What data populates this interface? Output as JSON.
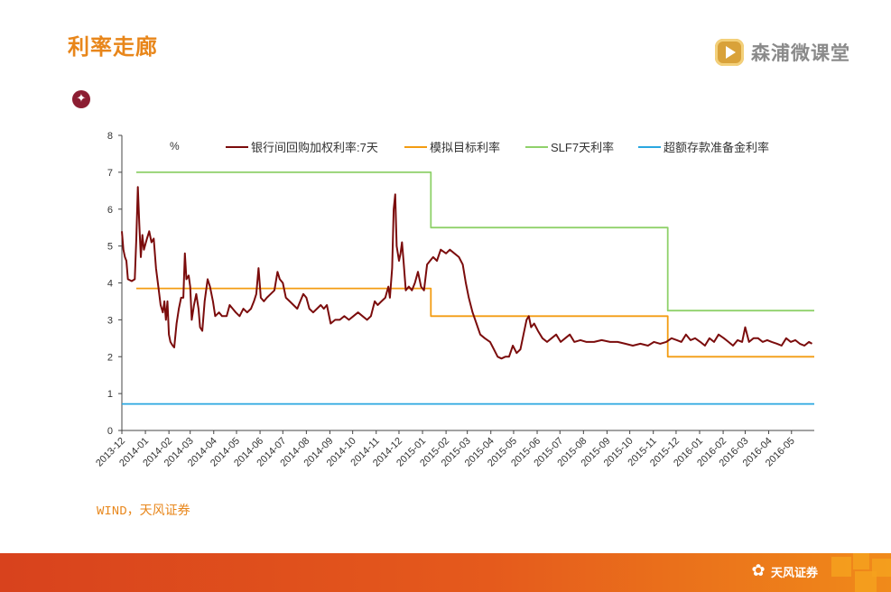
{
  "slide": {
    "title": "利率走廊",
    "source": "WIND，天风证券",
    "watermark_text": "森浦微课堂",
    "watermark_icon": "play-icon",
    "bullet_icon": "star-bullet-icon",
    "footer_logo_text": "天风证券",
    "footer_logo_icon": "flower-icon",
    "accent_color": "#e8861a"
  },
  "chart_data": {
    "type": "line",
    "unit_label": "%",
    "ylim": [
      0,
      8
    ],
    "yticks": [
      0,
      1,
      2,
      3,
      4,
      5,
      6,
      7,
      8
    ],
    "xlim": [
      "2013-12-01",
      "2016-05-31"
    ],
    "xticks": [
      "2013-12",
      "2014-01",
      "2014-02",
      "2014-03",
      "2014-04",
      "2014-05",
      "2014-06",
      "2014-07",
      "2014-08",
      "2014-09",
      "2014-10",
      "2014-11",
      "2014-12",
      "2015-01",
      "2015-02",
      "2015-03",
      "2015-04",
      "2015-05",
      "2015-06",
      "2015-07",
      "2015-08",
      "2015-09",
      "2015-10",
      "2015-11",
      "2015-12",
      "2016-01",
      "2016-02",
      "2016-03",
      "2016-04",
      "2016-05"
    ],
    "legend_position": "top",
    "grid": false,
    "series": [
      {
        "name": "银行间回购加权利率:7天",
        "color": "#7b0c0c",
        "points": [
          [
            "2013-12-01",
            5.4
          ],
          [
            "2013-12-03",
            4.9
          ],
          [
            "2013-12-05",
            4.7
          ],
          [
            "2013-12-07",
            4.6
          ],
          [
            "2013-12-09",
            4.1
          ],
          [
            "2013-12-14",
            4.05
          ],
          [
            "2013-12-18",
            4.1
          ],
          [
            "2013-12-20",
            5.2
          ],
          [
            "2013-12-22",
            6.6
          ],
          [
            "2013-12-24",
            5.6
          ],
          [
            "2013-12-26",
            4.7
          ],
          [
            "2013-12-28",
            5.3
          ],
          [
            "2013-12-30",
            4.9
          ],
          [
            "2014-01-03",
            5.2
          ],
          [
            "2014-01-06",
            5.4
          ],
          [
            "2014-01-09",
            5.1
          ],
          [
            "2014-01-12",
            5.2
          ],
          [
            "2014-01-15",
            4.4
          ],
          [
            "2014-01-18",
            3.9
          ],
          [
            "2014-01-21",
            3.4
          ],
          [
            "2014-01-24",
            3.2
          ],
          [
            "2014-01-26",
            3.5
          ],
          [
            "2014-01-28",
            3.0
          ],
          [
            "2014-01-30",
            3.5
          ],
          [
            "2014-02-01",
            2.6
          ],
          [
            "2014-02-03",
            2.4
          ],
          [
            "2014-02-06",
            2.3
          ],
          [
            "2014-02-08",
            2.25
          ],
          [
            "2014-02-11",
            2.9
          ],
          [
            "2014-02-14",
            3.3
          ],
          [
            "2014-02-17",
            3.6
          ],
          [
            "2014-02-20",
            3.6
          ],
          [
            "2014-02-22",
            4.8
          ],
          [
            "2014-02-24",
            4.1
          ],
          [
            "2014-02-27",
            4.2
          ],
          [
            "2014-03-01",
            3.9
          ],
          [
            "2014-03-03",
            3.0
          ],
          [
            "2014-03-06",
            3.4
          ],
          [
            "2014-03-09",
            3.7
          ],
          [
            "2014-03-12",
            3.3
          ],
          [
            "2014-03-14",
            2.8
          ],
          [
            "2014-03-17",
            2.7
          ],
          [
            "2014-03-20",
            3.5
          ],
          [
            "2014-03-24",
            4.1
          ],
          [
            "2014-03-27",
            3.9
          ],
          [
            "2014-03-31",
            3.5
          ],
          [
            "2014-04-03",
            3.1
          ],
          [
            "2014-04-08",
            3.2
          ],
          [
            "2014-04-12",
            3.1
          ],
          [
            "2014-04-18",
            3.1
          ],
          [
            "2014-04-22",
            3.4
          ],
          [
            "2014-04-26",
            3.3
          ],
          [
            "2014-04-30",
            3.2
          ],
          [
            "2014-05-05",
            3.1
          ],
          [
            "2014-05-10",
            3.3
          ],
          [
            "2014-05-15",
            3.2
          ],
          [
            "2014-05-20",
            3.3
          ],
          [
            "2014-05-24",
            3.5
          ],
          [
            "2014-05-27",
            3.7
          ],
          [
            "2014-05-30",
            4.4
          ],
          [
            "2014-06-02",
            3.6
          ],
          [
            "2014-06-06",
            3.5
          ],
          [
            "2014-06-10",
            3.6
          ],
          [
            "2014-06-15",
            3.7
          ],
          [
            "2014-06-20",
            3.8
          ],
          [
            "2014-06-24",
            4.3
          ],
          [
            "2014-06-27",
            4.1
          ],
          [
            "2014-07-01",
            4.0
          ],
          [
            "2014-07-05",
            3.6
          ],
          [
            "2014-07-10",
            3.5
          ],
          [
            "2014-07-15",
            3.4
          ],
          [
            "2014-07-20",
            3.3
          ],
          [
            "2014-07-24",
            3.5
          ],
          [
            "2014-07-28",
            3.7
          ],
          [
            "2014-08-01",
            3.6
          ],
          [
            "2014-08-05",
            3.3
          ],
          [
            "2014-08-10",
            3.2
          ],
          [
            "2014-08-15",
            3.3
          ],
          [
            "2014-08-20",
            3.4
          ],
          [
            "2014-08-24",
            3.3
          ],
          [
            "2014-08-28",
            3.4
          ],
          [
            "2014-09-02",
            2.9
          ],
          [
            "2014-09-08",
            3.0
          ],
          [
            "2014-09-14",
            3.0
          ],
          [
            "2014-09-20",
            3.1
          ],
          [
            "2014-09-26",
            3.0
          ],
          [
            "2014-10-02",
            3.1
          ],
          [
            "2014-10-08",
            3.2
          ],
          [
            "2014-10-14",
            3.1
          ],
          [
            "2014-10-20",
            3.0
          ],
          [
            "2014-10-25",
            3.1
          ],
          [
            "2014-10-30",
            3.5
          ],
          [
            "2014-11-03",
            3.4
          ],
          [
            "2014-11-08",
            3.5
          ],
          [
            "2014-11-13",
            3.6
          ],
          [
            "2014-11-17",
            3.9
          ],
          [
            "2014-11-19",
            3.6
          ],
          [
            "2014-11-22",
            4.4
          ],
          [
            "2014-11-24",
            6.0
          ],
          [
            "2014-11-26",
            6.4
          ],
          [
            "2014-11-28",
            5.0
          ],
          [
            "2014-12-01",
            4.6
          ],
          [
            "2014-12-03",
            4.8
          ],
          [
            "2014-12-05",
            5.1
          ],
          [
            "2014-12-07",
            4.6
          ],
          [
            "2014-12-10",
            3.8
          ],
          [
            "2014-12-14",
            3.9
          ],
          [
            "2014-12-18",
            3.8
          ],
          [
            "2014-12-22",
            4.0
          ],
          [
            "2014-12-26",
            4.3
          ],
          [
            "2014-12-30",
            3.9
          ],
          [
            "2015-01-03",
            3.8
          ],
          [
            "2015-01-07",
            4.5
          ],
          [
            "2015-01-11",
            4.6
          ],
          [
            "2015-01-15",
            4.7
          ],
          [
            "2015-01-20",
            4.6
          ],
          [
            "2015-01-25",
            4.9
          ],
          [
            "2015-02-01",
            4.8
          ],
          [
            "2015-02-06",
            4.9
          ],
          [
            "2015-02-12",
            4.8
          ],
          [
            "2015-02-18",
            4.7
          ],
          [
            "2015-02-23",
            4.5
          ],
          [
            "2015-02-27",
            4.0
          ],
          [
            "2015-03-03",
            3.6
          ],
          [
            "2015-03-08",
            3.2
          ],
          [
            "2015-03-13",
            2.9
          ],
          [
            "2015-03-18",
            2.6
          ],
          [
            "2015-03-24",
            2.5
          ],
          [
            "2015-03-31",
            2.4
          ],
          [
            "2015-04-05",
            2.2
          ],
          [
            "2015-04-10",
            2.0
          ],
          [
            "2015-04-15",
            1.95
          ],
          [
            "2015-04-20",
            2.0
          ],
          [
            "2015-04-25",
            2.0
          ],
          [
            "2015-04-30",
            2.3
          ],
          [
            "2015-05-05",
            2.1
          ],
          [
            "2015-05-10",
            2.2
          ],
          [
            "2015-05-14",
            2.6
          ],
          [
            "2015-05-18",
            3.0
          ],
          [
            "2015-05-21",
            3.1
          ],
          [
            "2015-05-24",
            2.8
          ],
          [
            "2015-05-28",
            2.9
          ],
          [
            "2015-06-02",
            2.7
          ],
          [
            "2015-06-08",
            2.5
          ],
          [
            "2015-06-14",
            2.4
          ],
          [
            "2015-06-20",
            2.5
          ],
          [
            "2015-06-26",
            2.6
          ],
          [
            "2015-07-02",
            2.4
          ],
          [
            "2015-07-08",
            2.5
          ],
          [
            "2015-07-14",
            2.6
          ],
          [
            "2015-07-20",
            2.4
          ],
          [
            "2015-07-28",
            2.45
          ],
          [
            "2015-08-05",
            2.4
          ],
          [
            "2015-08-15",
            2.4
          ],
          [
            "2015-08-25",
            2.45
          ],
          [
            "2015-09-05",
            2.4
          ],
          [
            "2015-09-15",
            2.4
          ],
          [
            "2015-09-25",
            2.35
          ],
          [
            "2015-10-05",
            2.3
          ],
          [
            "2015-10-15",
            2.35
          ],
          [
            "2015-10-25",
            2.3
          ],
          [
            "2015-11-02",
            2.4
          ],
          [
            "2015-11-10",
            2.35
          ],
          [
            "2015-11-18",
            2.4
          ],
          [
            "2015-11-25",
            2.5
          ],
          [
            "2015-12-02",
            2.45
          ],
          [
            "2015-12-08",
            2.4
          ],
          [
            "2015-12-14",
            2.6
          ],
          [
            "2015-12-20",
            2.45
          ],
          [
            "2015-12-26",
            2.5
          ],
          [
            "2016-01-02",
            2.4
          ],
          [
            "2016-01-08",
            2.3
          ],
          [
            "2016-01-14",
            2.5
          ],
          [
            "2016-01-20",
            2.4
          ],
          [
            "2016-01-26",
            2.6
          ],
          [
            "2016-02-02",
            2.5
          ],
          [
            "2016-02-08",
            2.4
          ],
          [
            "2016-02-14",
            2.3
          ],
          [
            "2016-02-20",
            2.45
          ],
          [
            "2016-02-26",
            2.4
          ],
          [
            "2016-03-01",
            2.8
          ],
          [
            "2016-03-06",
            2.4
          ],
          [
            "2016-03-12",
            2.5
          ],
          [
            "2016-03-18",
            2.5
          ],
          [
            "2016-03-24",
            2.4
          ],
          [
            "2016-03-30",
            2.45
          ],
          [
            "2016-04-05",
            2.4
          ],
          [
            "2016-04-12",
            2.35
          ],
          [
            "2016-04-18",
            2.3
          ],
          [
            "2016-04-24",
            2.5
          ],
          [
            "2016-04-30",
            2.4
          ],
          [
            "2016-05-06",
            2.45
          ],
          [
            "2016-05-12",
            2.35
          ],
          [
            "2016-05-18",
            2.3
          ],
          [
            "2016-05-24",
            2.4
          ],
          [
            "2016-05-28",
            2.35
          ]
        ]
      },
      {
        "name": "模拟目标利率",
        "color": "#f39c12",
        "points": [
          [
            "2013-12-20",
            3.85
          ],
          [
            "2015-01-12",
            3.85
          ],
          [
            "2015-01-12",
            3.1
          ],
          [
            "2015-11-20",
            3.1
          ],
          [
            "2015-11-20",
            2.0
          ],
          [
            "2016-05-31",
            2.0
          ]
        ]
      },
      {
        "name": "SLF7天利率",
        "color": "#8fd16a",
        "points": [
          [
            "2013-12-20",
            7.0
          ],
          [
            "2015-01-12",
            7.0
          ],
          [
            "2015-01-12",
            5.5
          ],
          [
            "2015-11-20",
            5.5
          ],
          [
            "2015-11-20",
            3.25
          ],
          [
            "2016-05-31",
            3.25
          ]
        ]
      },
      {
        "name": "超额存款准备金利率",
        "color": "#2aa7e0",
        "points": [
          [
            "2013-12-01",
            0.72
          ],
          [
            "2016-05-31",
            0.72
          ]
        ]
      }
    ]
  }
}
